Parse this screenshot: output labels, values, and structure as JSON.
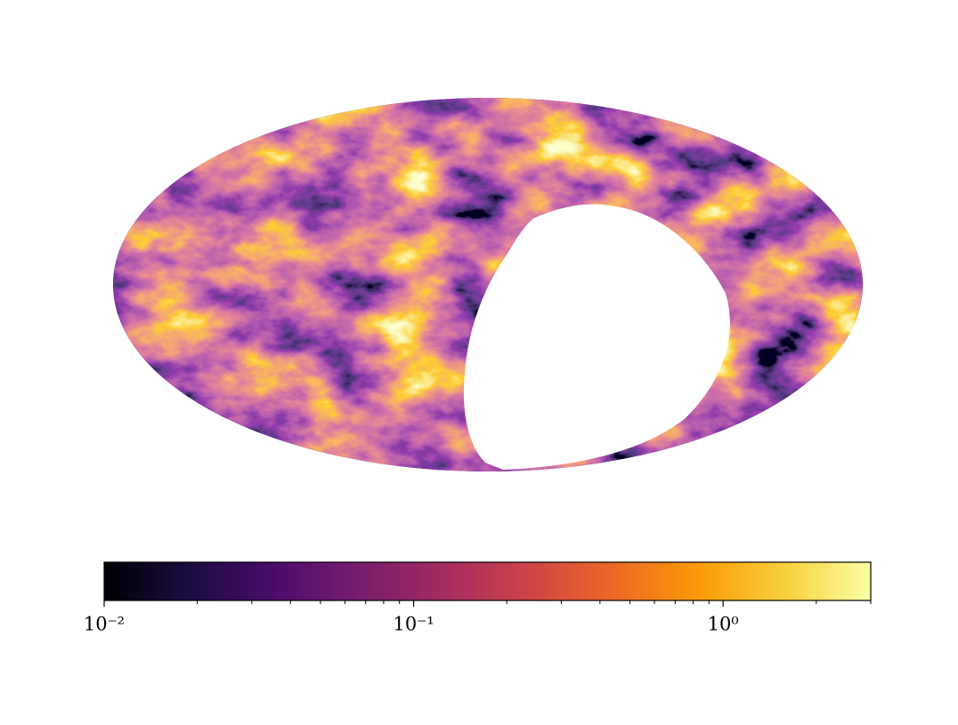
{
  "chart_data": {
    "type": "colorbar",
    "scale": "log",
    "lim": [
      0.01,
      3
    ],
    "ticks": [
      {
        "value": 0.01,
        "label": "10⁻²"
      },
      {
        "value": 0.1,
        "label": "10⁻¹"
      },
      {
        "value": 1,
        "label": "10⁰"
      }
    ],
    "minor_ticks": [
      0.02,
      0.03,
      0.04,
      0.05,
      0.06,
      0.07,
      0.08,
      0.09,
      0.2,
      0.3,
      0.4,
      0.5,
      0.6,
      0.7,
      0.8,
      0.9,
      2,
      3
    ],
    "colors": [
      "#000004",
      "#1b0c41",
      "#4a0c6b",
      "#781c6d",
      "#a52c60",
      "#cf4446",
      "#ed6925",
      "#fb9b06",
      "#f7d13d",
      "#fcffa4"
    ]
  }
}
